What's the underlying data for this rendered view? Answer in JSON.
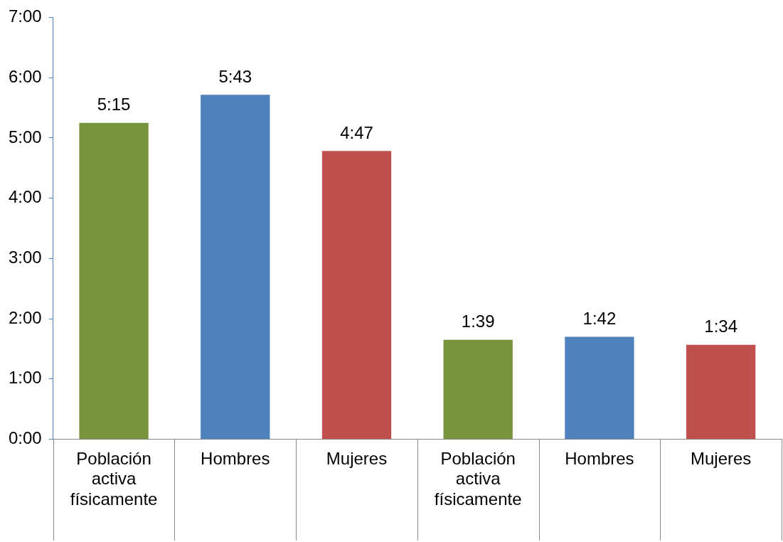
{
  "chart_data": {
    "type": "bar",
    "categories": [
      "Población activa físicamente",
      "Hombres",
      "Mujeres",
      "Población activa físicamente",
      "Hombres",
      "Mujeres"
    ],
    "values": [
      5.25,
      5.7167,
      4.7833,
      1.65,
      1.7,
      1.5667
    ],
    "colors": [
      "#77933c",
      "#4f81bd",
      "#c0504d",
      "#77933c",
      "#4f81bd",
      "#c0504d"
    ],
    "value_labels": [
      "5:15",
      "5:43",
      "4:47",
      "1:39",
      "1:42",
      "1:34"
    ],
    "ylim": [
      0,
      7
    ],
    "yticks": [
      {
        "value": 0,
        "label": "0:00"
      },
      {
        "value": 1,
        "label": "1:00"
      },
      {
        "value": 2,
        "label": "2:00"
      },
      {
        "value": 3,
        "label": "3:00"
      },
      {
        "value": 4,
        "label": "4:00"
      },
      {
        "value": 5,
        "label": "5:00"
      },
      {
        "value": 6,
        "label": "6:00"
      },
      {
        "value": 7,
        "label": "7:00"
      }
    ],
    "grid": false,
    "legend": false
  }
}
